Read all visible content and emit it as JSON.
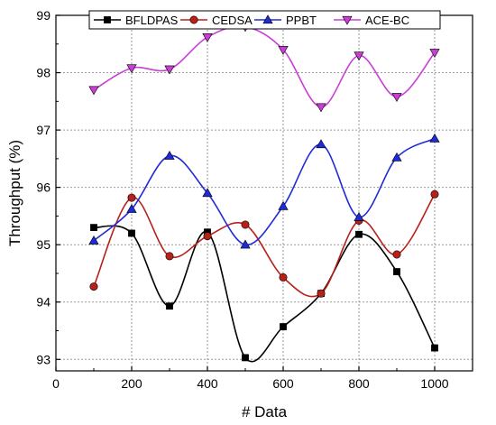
{
  "chart_data": {
    "type": "line",
    "xlabel": "# Data",
    "ylabel": "Throughput (%)",
    "xlim": [
      0,
      1100
    ],
    "ylim": [
      92.8,
      99
    ],
    "x_ticks": [
      0,
      200,
      400,
      600,
      800,
      1000
    ],
    "y_ticks": [
      93,
      94,
      95,
      96,
      97,
      98,
      99
    ],
    "grid": true,
    "legend_position": "top",
    "x": [
      100,
      200,
      300,
      400,
      500,
      600,
      700,
      800,
      900,
      1000
    ],
    "series": [
      {
        "name": "BFLDPAS",
        "color": "#000000",
        "marker": "square",
        "values": [
          95.3,
          95.2,
          93.93,
          95.22,
          93.03,
          93.57,
          94.15,
          95.18,
          94.53,
          93.2
        ]
      },
      {
        "name": "CEDSA",
        "color": "#b8201a",
        "marker": "circle",
        "values": [
          94.27,
          95.82,
          94.8,
          95.15,
          95.35,
          94.43,
          94.15,
          95.42,
          94.83,
          95.88
        ]
      },
      {
        "name": "PPBT",
        "color": "#1f2bd6",
        "marker": "triangle-up",
        "values": [
          95.07,
          95.62,
          96.55,
          95.9,
          95.0,
          95.67,
          96.75,
          95.48,
          96.52,
          96.85
        ]
      },
      {
        "name": "ACE-BC",
        "color": "#c93fd6",
        "marker": "triangle-down",
        "values": [
          97.7,
          98.08,
          98.06,
          98.62,
          98.8,
          98.4,
          97.4,
          98.3,
          97.58,
          98.35
        ]
      }
    ]
  }
}
